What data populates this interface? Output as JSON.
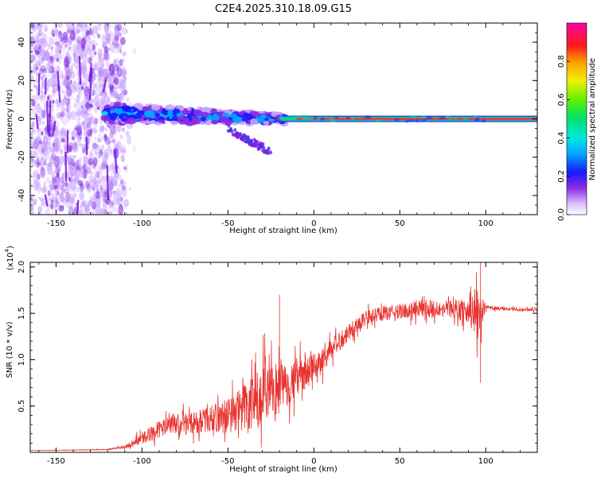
{
  "title": "C2E4.2025.310.18.09.G15",
  "chart_data": [
    {
      "type": "heatmap",
      "name": "spectrogram",
      "xlabel": "Height of straight line (km)",
      "ylabel": "Frequency (Hz)",
      "xlim": [
        -165,
        130
      ],
      "ylim": [
        -50,
        50
      ],
      "xticks": [
        -150,
        -100,
        -50,
        0,
        50,
        100
      ],
      "yticks": [
        -40,
        -20,
        0,
        20,
        40
      ],
      "grid": false,
      "colorbar": {
        "label": "Normalized spectral amplitude",
        "range": [
          0,
          1
        ],
        "ticks": [
          0.0,
          0.2,
          0.4,
          0.6,
          0.8
        ],
        "tick_labels": [
          "0.0",
          "0.2",
          "0.4",
          "0.6",
          "0.8"
        ],
        "colormap": "rainbow (white-violet-blue-cyan-green-yellow-red-magenta)"
      },
      "description_features": {
        "noise_region_x": [
          -165,
          -110
        ],
        "signal_band_center_hz": 0,
        "strong_carrier_start_x": -20,
        "secondary_branch": {
          "x": [
            -50,
            -25
          ],
          "freq": [
            -5,
            -18
          ]
        }
      }
    },
    {
      "type": "line",
      "name": "snr",
      "xlabel": "Height of straight line (km)",
      "ylabel": "SNR (10 * v/v)",
      "y_multiplier_label": "(x10",
      "y_multiplier_exp": "4",
      "xlim": [
        -165,
        130
      ],
      "ylim": [
        0,
        2.05
      ],
      "xticks": [
        -150,
        -100,
        -50,
        0,
        50,
        100
      ],
      "yticks": [
        0.5,
        1.0,
        1.5,
        2.0
      ],
      "ytick_labels": [
        "0.5",
        "1.0",
        "1.5",
        "2.0"
      ],
      "series": [
        {
          "name": "SNR",
          "color": "#e8332e",
          "envelope_x": [
            -165,
            -120,
            -110,
            -100,
            -90,
            -80,
            -70,
            -60,
            -50,
            -40,
            -30,
            -25,
            -20,
            -10,
            0,
            10,
            20,
            30,
            40,
            50,
            60,
            70,
            80,
            90,
            95,
            100,
            110,
            120,
            130
          ],
          "envelope_mid": [
            0.02,
            0.03,
            0.06,
            0.15,
            0.25,
            0.3,
            0.32,
            0.36,
            0.4,
            0.5,
            0.55,
            0.6,
            0.7,
            0.8,
            0.9,
            1.1,
            1.3,
            1.45,
            1.5,
            1.52,
            1.55,
            1.55,
            1.55,
            1.52,
            1.5,
            1.56,
            1.55,
            1.54,
            1.54
          ],
          "noise_amp": [
            0.0,
            0.005,
            0.02,
            0.08,
            0.12,
            0.14,
            0.15,
            0.18,
            0.25,
            0.35,
            0.45,
            0.45,
            0.35,
            0.25,
            0.2,
            0.15,
            0.12,
            0.1,
            0.1,
            0.1,
            0.12,
            0.12,
            0.12,
            0.15,
            0.4,
            0.03,
            0.02,
            0.02,
            0.02
          ],
          "notable_points": [
            {
              "x": -20,
              "y": 1.7
            },
            {
              "x": 97,
              "y": 0.75
            },
            {
              "x": 97,
              "y": 2.05
            }
          ]
        }
      ]
    }
  ]
}
